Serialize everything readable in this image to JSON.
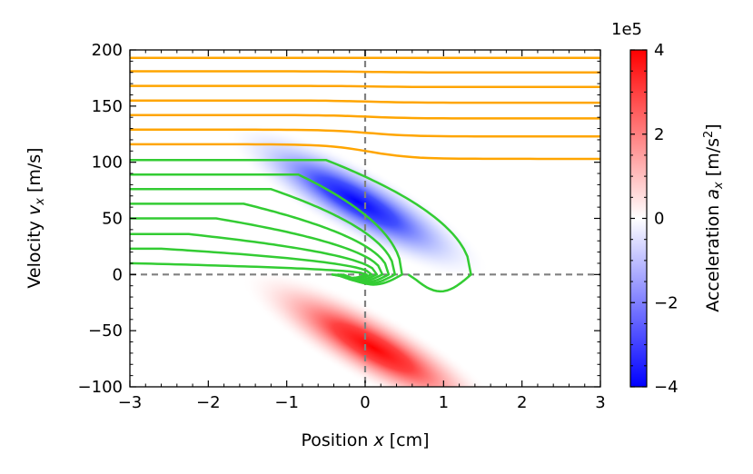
{
  "chart_data": {
    "type": "heatmap",
    "xlabel": {
      "pre": "Position ",
      "var": "x",
      "post": " [cm]"
    },
    "ylabel": {
      "pre": "Velocity ",
      "var": "v",
      "sub": "x",
      "post": " [m/s]"
    },
    "xlim": [
      -3,
      3
    ],
    "ylim": [
      -100,
      200
    ],
    "xticks": [
      -3,
      -2,
      -1,
      0,
      1,
      2,
      3
    ],
    "yticks": [
      -100,
      -50,
      0,
      50,
      100,
      150,
      200
    ],
    "xtick_labels": [
      "−3",
      "−2",
      "−1",
      "0",
      "1",
      "2",
      "3"
    ],
    "ytick_labels": [
      "−100",
      "−50",
      "0",
      "50",
      "100",
      "150",
      "200"
    ],
    "reference_lines": {
      "x": 0,
      "y": 0,
      "color": "#808080",
      "style": "dashed"
    },
    "colorbar": {
      "label": {
        "pre": "Acceleration ",
        "var": "a",
        "sub": "x",
        "post": " [m/s",
        "sup": "2",
        "end": "]"
      },
      "offset_label": "1e5",
      "range": [
        -4,
        4
      ],
      "ticks": [
        -4,
        -2,
        0,
        2,
        4
      ],
      "tick_labels": [
        "−4",
        "−2",
        "0",
        "2",
        "4"
      ],
      "colormap": [
        "#0000ff",
        "#ffffff",
        "#ff0000"
      ]
    },
    "heatmap_regions": [
      {
        "sign": "negative",
        "color": "#0000ff",
        "center_x": -0.1,
        "center_v": 65,
        "peak": -4
      },
      {
        "sign": "positive",
        "color": "#ff0000",
        "center_x": 0.1,
        "center_v": -65,
        "peak": 4
      }
    ],
    "series": [
      {
        "color": "#ffa500",
        "initial_velocities": [
          193,
          181,
          168,
          155,
          142,
          129,
          116
        ],
        "final_velocities": [
          193,
          180,
          167,
          153,
          139,
          123,
          103
        ]
      },
      {
        "color": "#33cc33",
        "initial_velocities": [
          102,
          89,
          76,
          63,
          50,
          36,
          23,
          10
        ],
        "stop_positions": [
          1.35,
          0.47,
          0.38,
          0.3,
          0.22,
          0.15,
          0.08,
          0.02
        ]
      }
    ]
  }
}
